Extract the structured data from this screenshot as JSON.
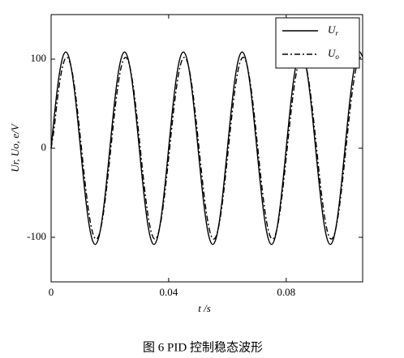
{
  "chart_data": {
    "type": "line",
    "caption": "图 6   PID 控制稳态波形",
    "xlabel": "t /s",
    "ylabel": "Ur, Uo, e/V",
    "x": [
      0,
      0.001,
      0.002,
      0.003,
      0.004,
      0.005,
      0.006,
      0.007,
      0.008,
      0.009,
      0.01,
      0.011,
      0.012,
      0.013,
      0.014,
      0.015,
      0.016,
      0.017,
      0.018,
      0.019,
      0.02,
      0.021,
      0.022,
      0.023,
      0.024,
      0.025,
      0.026,
      0.027,
      0.028,
      0.029,
      0.03,
      0.031,
      0.032,
      0.033,
      0.034,
      0.035,
      0.036,
      0.037,
      0.038,
      0.039,
      0.04,
      0.041,
      0.042,
      0.043,
      0.044,
      0.045,
      0.046,
      0.047,
      0.048,
      0.049,
      0.05,
      0.051,
      0.052,
      0.053,
      0.054,
      0.055,
      0.056,
      0.057,
      0.058,
      0.059,
      0.06,
      0.061,
      0.062,
      0.063,
      0.064,
      0.065,
      0.066,
      0.067,
      0.068,
      0.069,
      0.07,
      0.071,
      0.072,
      0.073,
      0.074,
      0.075,
      0.076,
      0.077,
      0.078,
      0.079,
      0.08,
      0.081,
      0.082,
      0.083,
      0.084,
      0.085,
      0.086,
      0.087,
      0.088,
      0.089,
      0.09,
      0.091,
      0.092,
      0.093,
      0.094,
      0.095,
      0.096,
      0.097,
      0.098,
      0.099,
      0.1,
      0.101,
      0.102,
      0.103,
      0.104,
      0.105,
      0.106
    ],
    "series": [
      {
        "name": "Ur",
        "color": "#000000",
        "dash": "solid",
        "values": [
          0,
          33.4,
          63.5,
          87.4,
          102.7,
          108,
          102.7,
          87.4,
          63.5,
          33.4,
          0,
          -33.4,
          -63.5,
          -87.4,
          -102.7,
          -108,
          -102.7,
          -87.4,
          -63.5,
          -33.4,
          0,
          33.4,
          63.5,
          87.4,
          102.7,
          108,
          102.7,
          87.4,
          63.5,
          33.4,
          0,
          -33.4,
          -63.5,
          -87.4,
          -102.7,
          -108,
          -102.7,
          -87.4,
          -63.5,
          -33.4,
          0,
          33.4,
          63.5,
          87.4,
          102.7,
          108,
          102.7,
          87.4,
          63.5,
          33.4,
          0,
          -33.4,
          -63.5,
          -87.4,
          -102.7,
          -108,
          -102.7,
          -87.4,
          -63.5,
          -33.4,
          0,
          33.4,
          63.5,
          87.4,
          102.7,
          108,
          102.7,
          87.4,
          63.5,
          33.4,
          0,
          -33.4,
          -63.5,
          -87.4,
          -102.7,
          -108,
          -102.7,
          -87.4,
          -63.5,
          -33.4,
          0,
          33.4,
          63.5,
          87.4,
          102.7,
          108,
          102.7,
          87.4,
          63.5,
          33.4,
          0,
          -33.4,
          -63.5,
          -87.4,
          -102.7,
          -108,
          -102.7,
          -87.4,
          -63.5,
          -33.4,
          0,
          33.4,
          63.5,
          87.4,
          102.7,
          108,
          102.7
        ]
      },
      {
        "name": "Uo",
        "color": "#000000",
        "dash": "dashdot",
        "values": [
          0,
          21.2,
          51,
          75.8,
          93.2,
          101.4,
          99.8,
          88.3,
          68.3,
          41.5,
          10.7,
          -21.2,
          -51,
          -75.8,
          -93.2,
          -101.4,
          -99.8,
          -88.3,
          -68.3,
          -41.5,
          -10.7,
          21.2,
          51,
          75.8,
          93.2,
          101.4,
          99.8,
          88.3,
          68.3,
          41.5,
          10.7,
          -21.2,
          -51,
          -75.8,
          -93.2,
          -101.4,
          -99.8,
          -88.3,
          -68.3,
          -41.5,
          -10.7,
          21.2,
          51,
          75.8,
          93.2,
          101.4,
          99.8,
          88.3,
          68.3,
          41.5,
          10.7,
          -21.2,
          -51,
          -75.8,
          -93.2,
          -101.4,
          -99.8,
          -88.3,
          -68.3,
          -41.5,
          -10.7,
          21.2,
          51,
          75.8,
          93.2,
          101.4,
          99.8,
          88.3,
          68.3,
          41.5,
          10.7,
          -21.2,
          -51,
          -75.8,
          -93.2,
          -101.4,
          -99.8,
          -88.3,
          -68.3,
          -41.5,
          -10.7,
          21.2,
          51,
          75.8,
          93.2,
          101.4,
          99.8,
          88.3,
          68.3,
          41.5,
          10.7,
          -21.2,
          -51,
          -75.8,
          -93.2,
          -101.4,
          -99.8,
          -88.3,
          -68.3,
          -41.5,
          -10.7,
          21.2,
          51,
          75.8,
          93.2,
          101.4,
          99.8
        ]
      }
    ],
    "xlim": [
      0,
      0.106
    ],
    "xticks": [
      0,
      0.04,
      0.08
    ],
    "ylim": [
      -150,
      150
    ],
    "yticks": [
      -100,
      0,
      100
    ],
    "legend": "upper right",
    "grid": false
  }
}
